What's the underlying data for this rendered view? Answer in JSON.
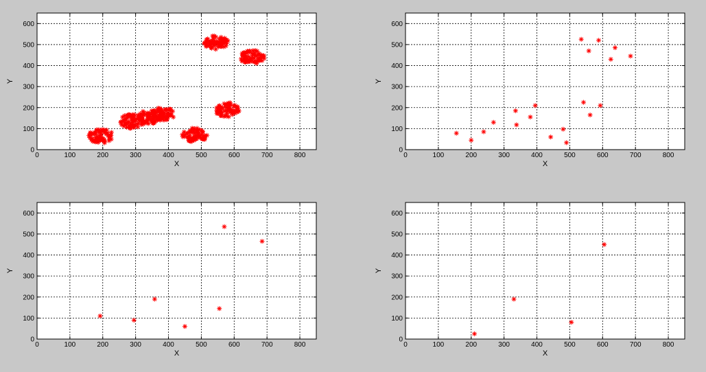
{
  "colors": {
    "figure_background": "#c8c8c8",
    "axes_background": "#ffffff",
    "marker": "#ff0000",
    "grid": "#000000"
  },
  "chart_data": [
    {
      "type": "scatter",
      "title": "",
      "xlabel": "X",
      "ylabel": "Y",
      "xlim": [
        0,
        850
      ],
      "ylim": [
        0,
        650
      ],
      "xticks": [
        0,
        100,
        200,
        300,
        400,
        500,
        600,
        700,
        800
      ],
      "yticks": [
        0,
        100,
        200,
        300,
        400,
        500,
        600
      ],
      "grid": true,
      "marker": "*",
      "marker_color": "#ff0000",
      "clusters": [
        {
          "center": [
            195,
            65
          ],
          "radius": 38,
          "count": 70
        },
        {
          "center": [
            290,
            135
          ],
          "radius": 38,
          "count": 70
        },
        {
          "center": [
            345,
            155
          ],
          "radius": 38,
          "count": 70
        },
        {
          "center": [
            385,
            170
          ],
          "radius": 35,
          "count": 60
        },
        {
          "center": [
            480,
            70
          ],
          "radius": 38,
          "count": 70
        },
        {
          "center": [
            545,
            510
          ],
          "radius": 38,
          "count": 70
        },
        {
          "center": [
            578,
            190
          ],
          "radius": 38,
          "count": 70
        },
        {
          "center": [
            655,
            440
          ],
          "radius": 38,
          "count": 70
        }
      ]
    },
    {
      "type": "scatter",
      "title": "",
      "xlabel": "X",
      "ylabel": "Y",
      "xlim": [
        0,
        850
      ],
      "ylim": [
        0,
        650
      ],
      "xticks": [
        0,
        100,
        200,
        300,
        400,
        500,
        600,
        700,
        800
      ],
      "yticks": [
        0,
        100,
        200,
        300,
        400,
        500,
        600
      ],
      "grid": true,
      "marker": "*",
      "marker_color": "#ff0000",
      "points": [
        [
          155,
          78
        ],
        [
          200,
          45
        ],
        [
          238,
          85
        ],
        [
          268,
          130
        ],
        [
          335,
          185
        ],
        [
          338,
          118
        ],
        [
          380,
          155
        ],
        [
          395,
          210
        ],
        [
          442,
          60
        ],
        [
          480,
          97
        ],
        [
          490,
          33
        ],
        [
          535,
          525
        ],
        [
          542,
          225
        ],
        [
          558,
          470
        ],
        [
          562,
          165
        ],
        [
          588,
          520
        ],
        [
          593,
          210
        ],
        [
          625,
          430
        ],
        [
          638,
          485
        ],
        [
          685,
          445
        ]
      ]
    },
    {
      "type": "scatter",
      "title": "",
      "xlabel": "X",
      "ylabel": "Y",
      "xlim": [
        0,
        850
      ],
      "ylim": [
        0,
        650
      ],
      "xticks": [
        0,
        100,
        200,
        300,
        400,
        500,
        600,
        700,
        800
      ],
      "yticks": [
        0,
        100,
        200,
        300,
        400,
        500,
        600
      ],
      "grid": true,
      "marker": "*",
      "marker_color": "#ff0000",
      "points": [
        [
          192,
          110
        ],
        [
          295,
          90
        ],
        [
          358,
          190
        ],
        [
          450,
          60
        ],
        [
          555,
          145
        ],
        [
          570,
          535
        ],
        [
          685,
          465
        ]
      ]
    },
    {
      "type": "scatter",
      "title": "",
      "xlabel": "X",
      "ylabel": "Y",
      "xlim": [
        0,
        850
      ],
      "ylim": [
        0,
        650
      ],
      "xticks": [
        0,
        100,
        200,
        300,
        400,
        500,
        600,
        700,
        800
      ],
      "yticks": [
        0,
        100,
        200,
        300,
        400,
        500,
        600
      ],
      "grid": true,
      "marker": "*",
      "marker_color": "#ff0000",
      "points": [
        [
          210,
          25
        ],
        [
          330,
          190
        ],
        [
          505,
          80
        ],
        [
          605,
          450
        ]
      ]
    }
  ]
}
